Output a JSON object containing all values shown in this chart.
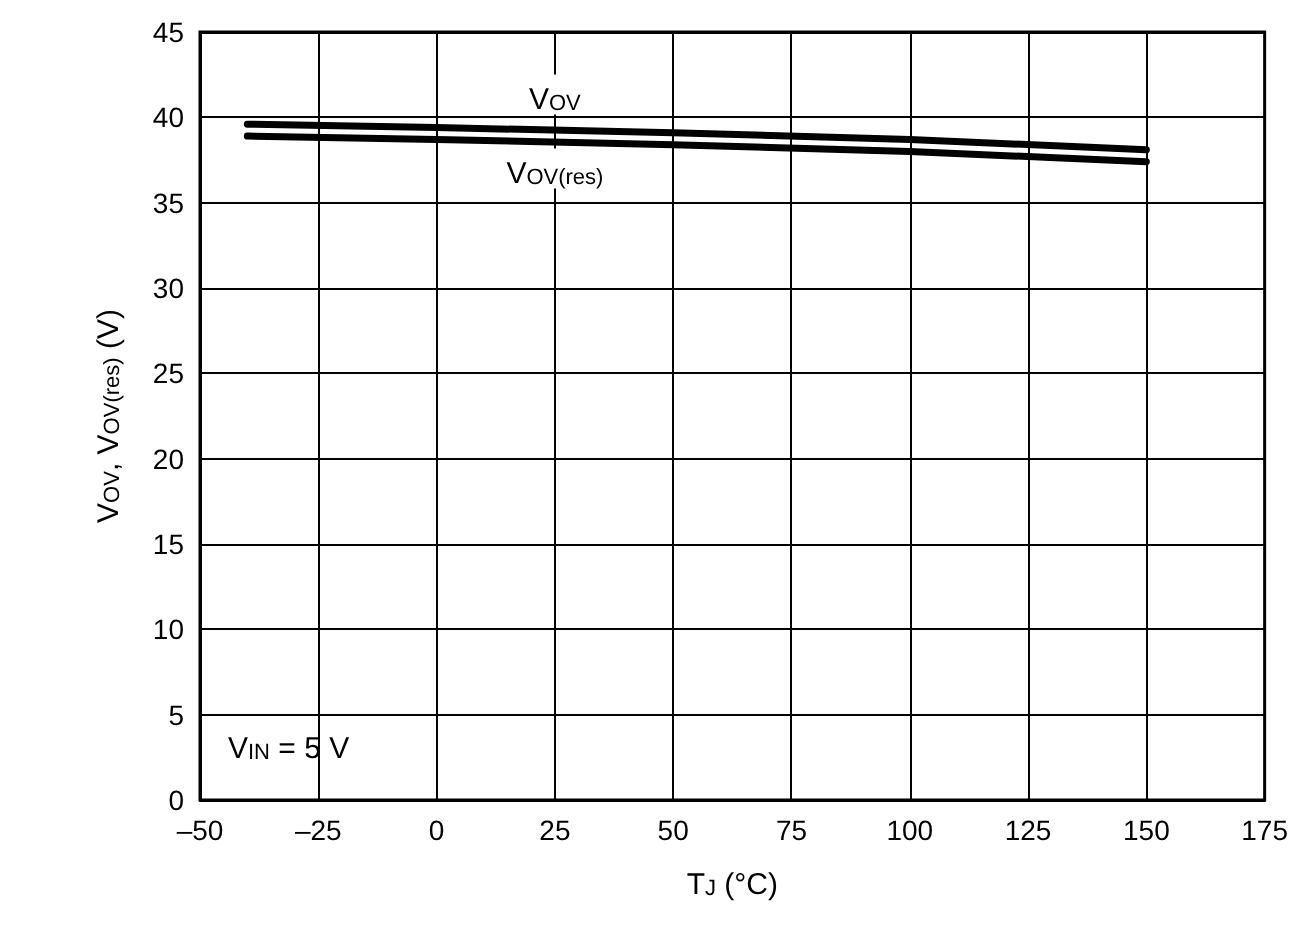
{
  "chart_data": {
    "type": "line",
    "xlabel": "T$_{J}$ (°C)",
    "ylabel": "V$_{OV}$, V$_{OV(res)}$ (V)",
    "x": [
      -40,
      0,
      50,
      100,
      150
    ],
    "series": [
      {
        "name": "V$_{OV}$",
        "color": "#000000",
        "values": [
          39.6,
          39.4,
          39.1,
          38.7,
          38.1
        ]
      },
      {
        "name": "V$_{OV(res)}$",
        "color": "#000000",
        "values": [
          38.9,
          38.7,
          38.4,
          38.0,
          37.4
        ]
      }
    ],
    "xlim": [
      -50,
      175
    ],
    "xticks": [
      {
        "value": -50,
        "label": "–50"
      },
      {
        "value": -25,
        "label": "–25"
      },
      0,
      25,
      50,
      75,
      100,
      125,
      150,
      175
    ],
    "ylim": [
      0,
      45
    ],
    "yticks": [
      0,
      5,
      10,
      15,
      20,
      25,
      30,
      35,
      40,
      45
    ],
    "grid": true,
    "marker": "none",
    "line_style": "solid",
    "annotations": [
      "V$_{IN}$ = 5 V"
    ]
  }
}
